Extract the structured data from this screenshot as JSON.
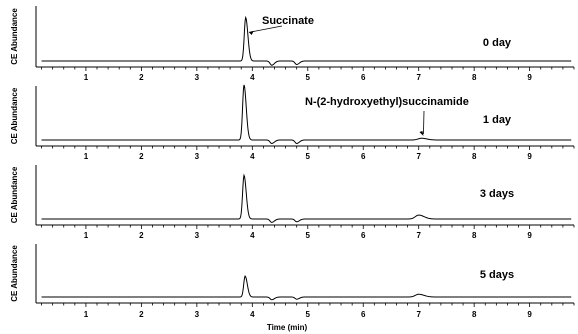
{
  "chart_data": {
    "type": "line",
    "xlabel": "Time (min)",
    "ylabel": "CE Abundance",
    "xlim": [
      0.1,
      9.8
    ],
    "xticks": [
      1,
      2,
      3,
      4,
      5,
      6,
      7,
      8,
      9
    ],
    "grid": false,
    "panels": [
      {
        "label": "0 day",
        "annotations": [
          {
            "text": "Succinate",
            "x": 3.88
          }
        ],
        "peaks": [
          {
            "x": 3.88,
            "height": 0.62
          },
          {
            "x": 4.35,
            "height": -0.06
          },
          {
            "x": 4.8,
            "height": -0.05
          }
        ]
      },
      {
        "label": "1 day",
        "annotations": [
          {
            "text": "N-(2-hydroxyethyl)succinamide",
            "x": 7.05
          }
        ],
        "peaks": [
          {
            "x": 3.85,
            "height": 0.95
          },
          {
            "x": 4.35,
            "height": -0.06
          },
          {
            "x": 4.8,
            "height": -0.06
          },
          {
            "x": 7.05,
            "height": 0.03
          }
        ]
      },
      {
        "label": "3 days",
        "annotations": [],
        "peaks": [
          {
            "x": 3.85,
            "height": 0.78
          },
          {
            "x": 4.35,
            "height": -0.06
          },
          {
            "x": 4.8,
            "height": -0.05
          },
          {
            "x": 7.0,
            "height": 0.07
          }
        ]
      },
      {
        "label": "5 days",
        "annotations": [],
        "peaks": [
          {
            "x": 3.87,
            "height": 0.38
          },
          {
            "x": 4.35,
            "height": -0.05
          },
          {
            "x": 4.8,
            "height": -0.04
          },
          {
            "x": 7.0,
            "height": 0.05
          }
        ]
      }
    ]
  }
}
